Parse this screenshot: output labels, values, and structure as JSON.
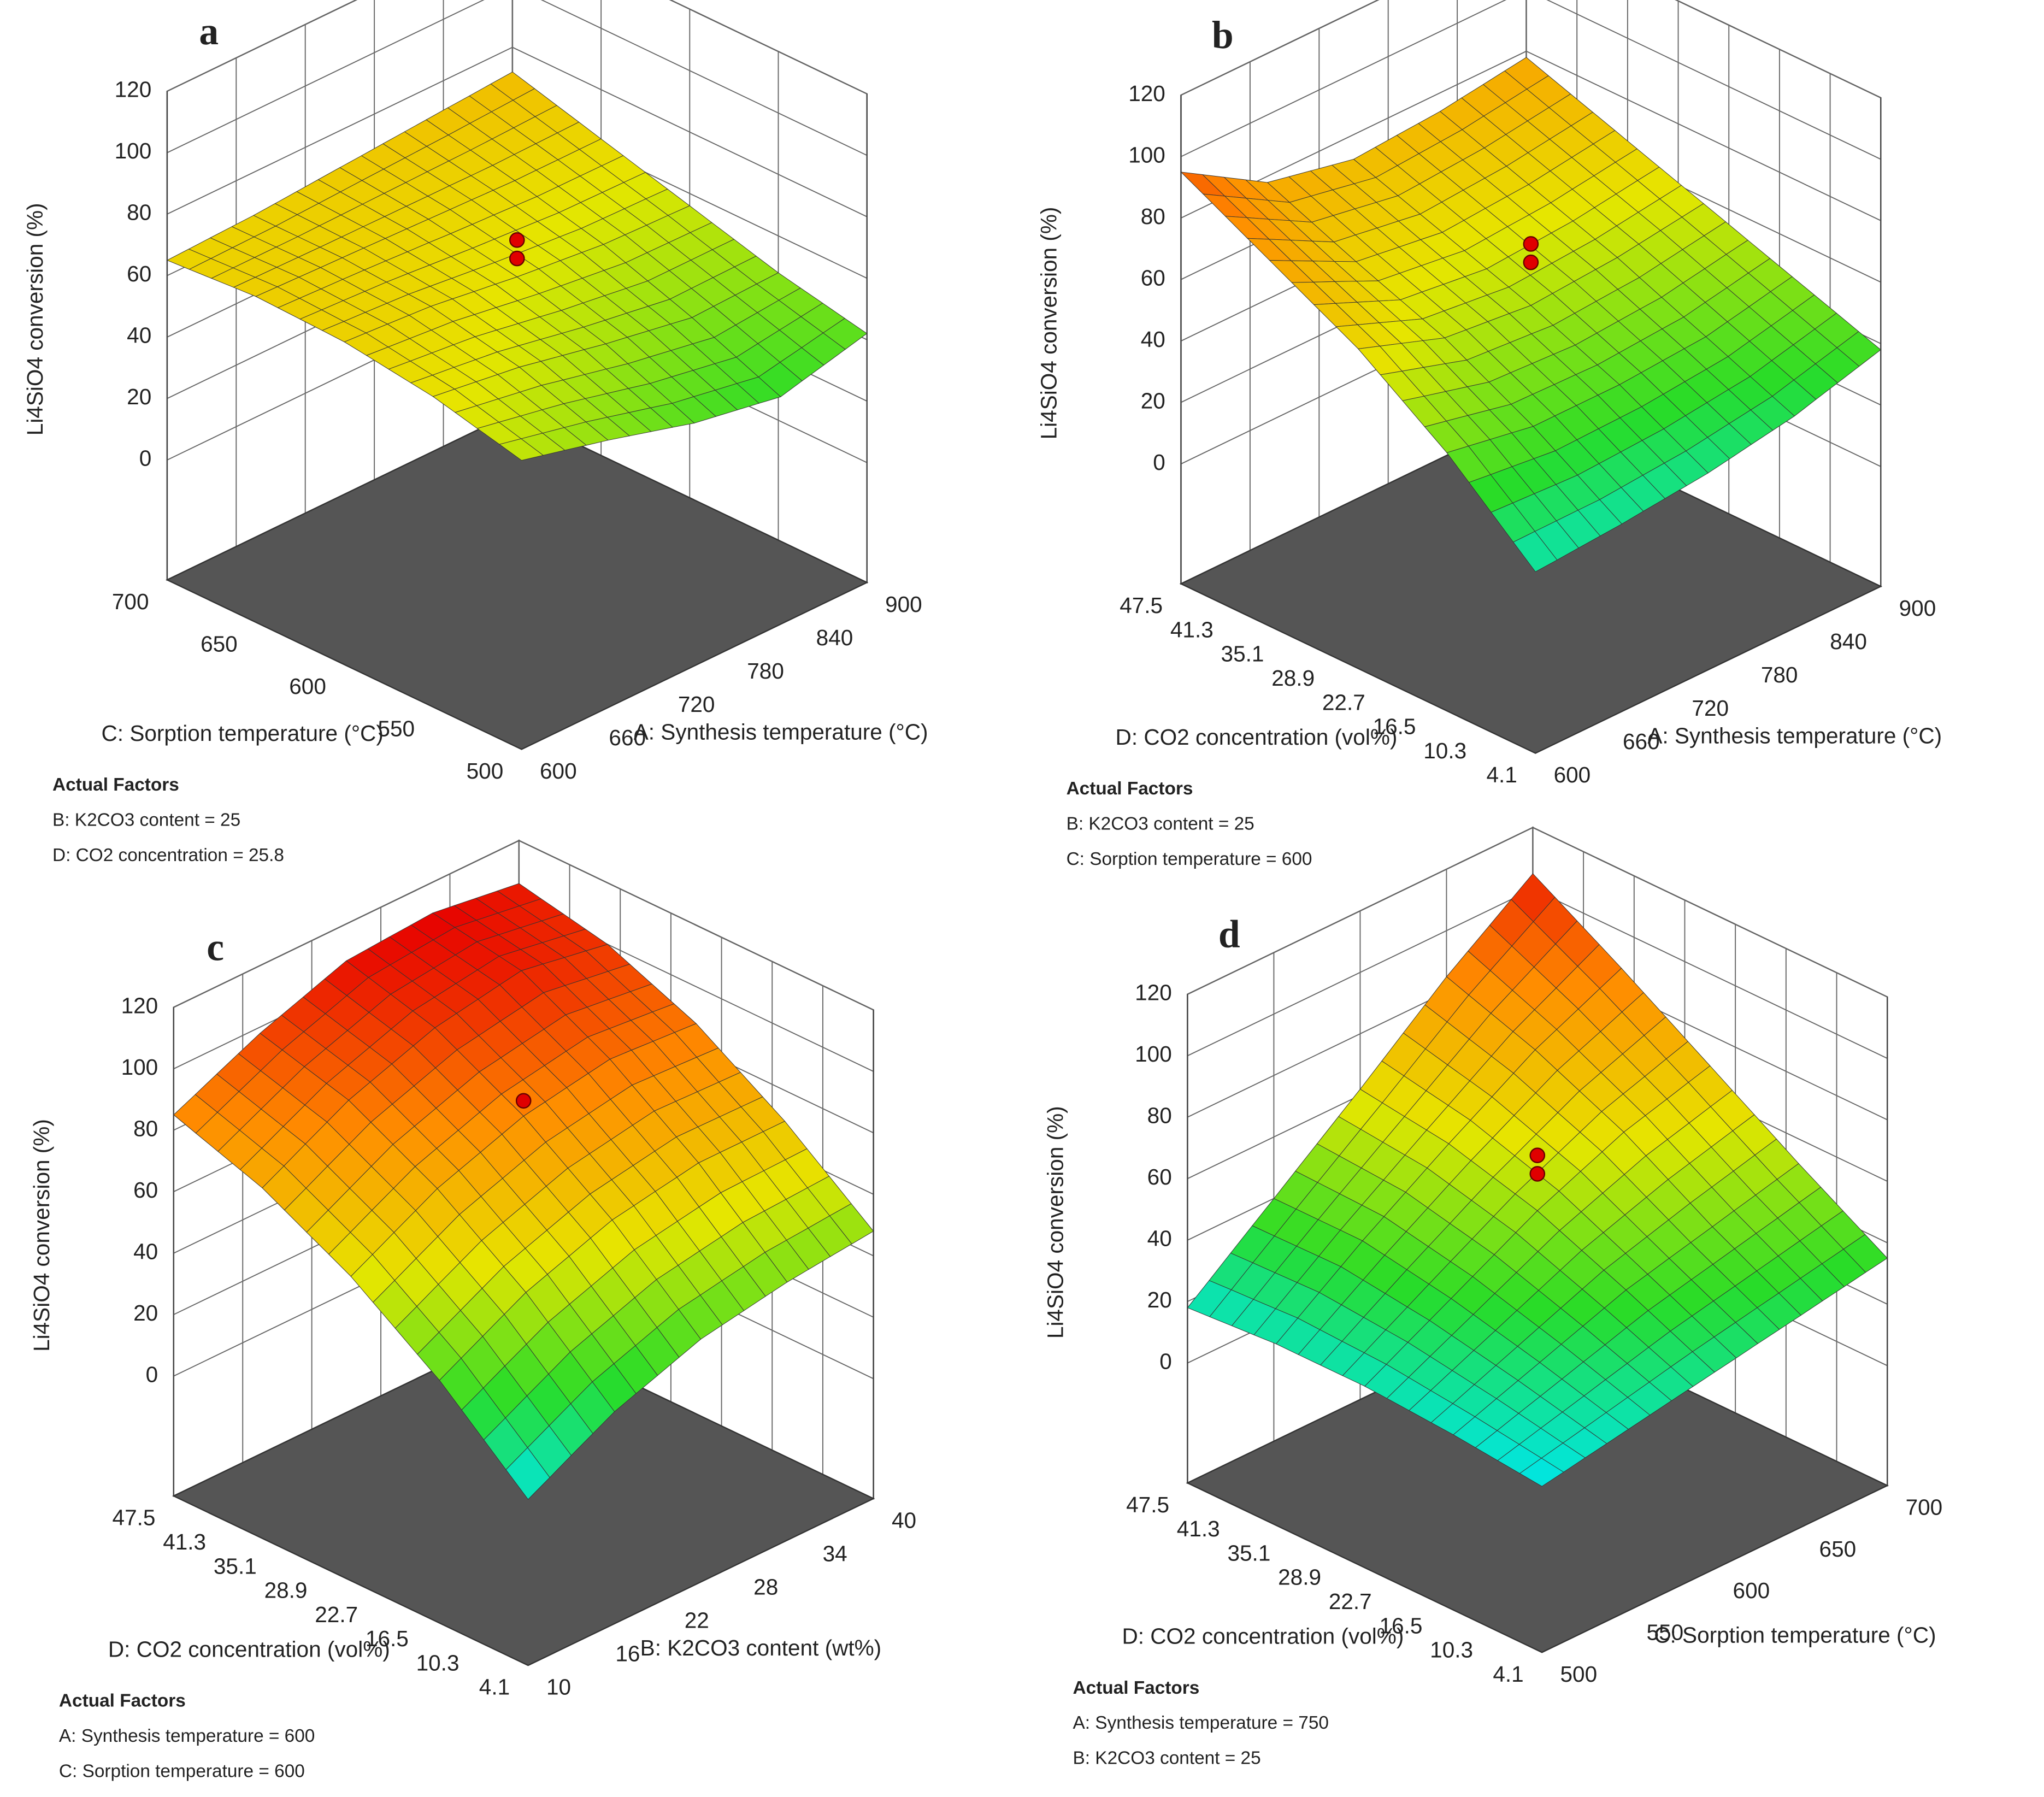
{
  "chart_data": [
    {
      "type": "surface",
      "label": "a",
      "zlabel": "Li4SiO4 conversion (%)",
      "xlabel": "A: Synthesis temperature (°C)",
      "ylabel": "C: Sorption temperature (°C)",
      "xlim": [
        600,
        900
      ],
      "xticks": [
        600,
        660,
        720,
        780,
        840,
        900
      ],
      "ylim": [
        500,
        700
      ],
      "yticks": [
        500,
        550,
        600,
        650,
        700
      ],
      "zlim": [
        0,
        120
      ],
      "zticks": [
        0,
        20,
        40,
        60,
        80,
        100,
        120
      ],
      "z": [
        [
          55,
          62,
          66,
          67,
          65
        ],
        [
          48,
          58,
          64,
          66,
          66
        ],
        [
          40,
          52,
          60,
          65,
          68
        ],
        [
          35,
          47,
          57,
          64,
          70
        ],
        [
          42,
          48,
          56,
          64,
          72
        ]
      ],
      "points": [
        [
          750,
          600,
          72
        ],
        [
          750,
          600,
          66
        ]
      ],
      "factors_title": "Actual Factors",
      "factors": [
        "B: K2CO3 content = 25",
        "D: CO2 concentration = 25.8"
      ]
    },
    {
      "type": "surface",
      "label": "b",
      "zlabel": "Li4SiO4 conversion (%)",
      "xlabel": "A: Synthesis temperature (°C)",
      "ylabel": "D: CO2 concentration (vol%)",
      "xlim": [
        600,
        900
      ],
      "xticks": [
        600,
        660,
        720,
        780,
        840,
        900
      ],
      "ylim": [
        4.1,
        47.5
      ],
      "yticks": [
        4.1,
        10.3,
        16.5,
        22.7,
        28.9,
        35.1,
        41.3,
        47.5
      ],
      "zlim": [
        0,
        120
      ],
      "zticks": [
        0,
        20,
        40,
        60,
        80,
        100,
        120
      ],
      "z": [
        [
          20,
          45,
          65,
          80,
          95
        ],
        [
          22,
          40,
          55,
          66,
          78
        ],
        [
          25,
          40,
          52,
          62,
          72
        ],
        [
          30,
          42,
          54,
          64,
          74
        ],
        [
          38,
          48,
          58,
          68,
          78
        ]
      ],
      "points": [
        [
          750,
          25.8,
          72
        ],
        [
          750,
          25.8,
          66
        ]
      ],
      "factors_title": "Actual Factors",
      "factors": [
        "B: K2CO3 content = 25",
        "C: Sorption temperature = 600"
      ]
    },
    {
      "type": "surface",
      "label": "c",
      "zlabel": "Li4SiO4 conversion (%)",
      "xlabel": "B: K2CO3 content (wt%)",
      "ylabel": "D: CO2 concentration (vol%)",
      "xlim": [
        10,
        40
      ],
      "xticks": [
        10,
        16,
        22,
        28,
        34,
        40
      ],
      "ylim": [
        4.1,
        47.5
      ],
      "yticks": [
        4.1,
        10.3,
        16.5,
        22.7,
        28.9,
        35.1,
        41.3,
        47.5
      ],
      "zlim": [
        0,
        120
      ],
      "zticks": [
        0,
        20,
        40,
        60,
        80,
        100,
        120
      ],
      "z": [
        [
          15,
          40,
          60,
          75,
          85
        ],
        [
          30,
          55,
          75,
          90,
          98
        ],
        [
          40,
          65,
          85,
          100,
          108
        ],
        [
          45,
          70,
          90,
          105,
          110
        ],
        [
          48,
          70,
          88,
          100,
          106
        ]
      ],
      "points": [
        [
          25,
          25.8,
          90
        ]
      ],
      "factors_title": "Actual Factors",
      "factors": [
        "A: Synthesis temperature = 600",
        "C: Sorption temperature = 600"
      ]
    },
    {
      "type": "surface",
      "label": "d",
      "zlabel": "Li4SiO4 conversion (%)",
      "xlabel": "C: Sorption temperature (°C)",
      "ylabel": "D: CO2 concentration (vol%)",
      "xlim": [
        500,
        700
      ],
      "xticks": [
        500,
        550,
        600,
        650,
        700
      ],
      "ylim": [
        4.1,
        47.5
      ],
      "yticks": [
        4.1,
        10.3,
        16.5,
        22.7,
        28.9,
        35.1,
        41.3,
        47.5
      ],
      "zlim": [
        0,
        120
      ],
      "zticks": [
        0,
        20,
        40,
        60,
        80,
        100,
        120
      ],
      "z": [
        [
          15,
          18,
          20,
          20,
          18
        ],
        [
          20,
          28,
          35,
          40,
          40
        ],
        [
          25,
          38,
          50,
          58,
          62
        ],
        [
          30,
          45,
          62,
          75,
          85
        ],
        [
          35,
          52,
          70,
          88,
          105
        ]
      ],
      "points": [
        [
          600,
          25.8,
          68
        ],
        [
          600,
          25.8,
          62
        ]
      ],
      "factors_title": "Actual Factors",
      "factors": [
        "A: Synthesis temperature = 750",
        "B: K2CO3 content = 25"
      ]
    }
  ]
}
